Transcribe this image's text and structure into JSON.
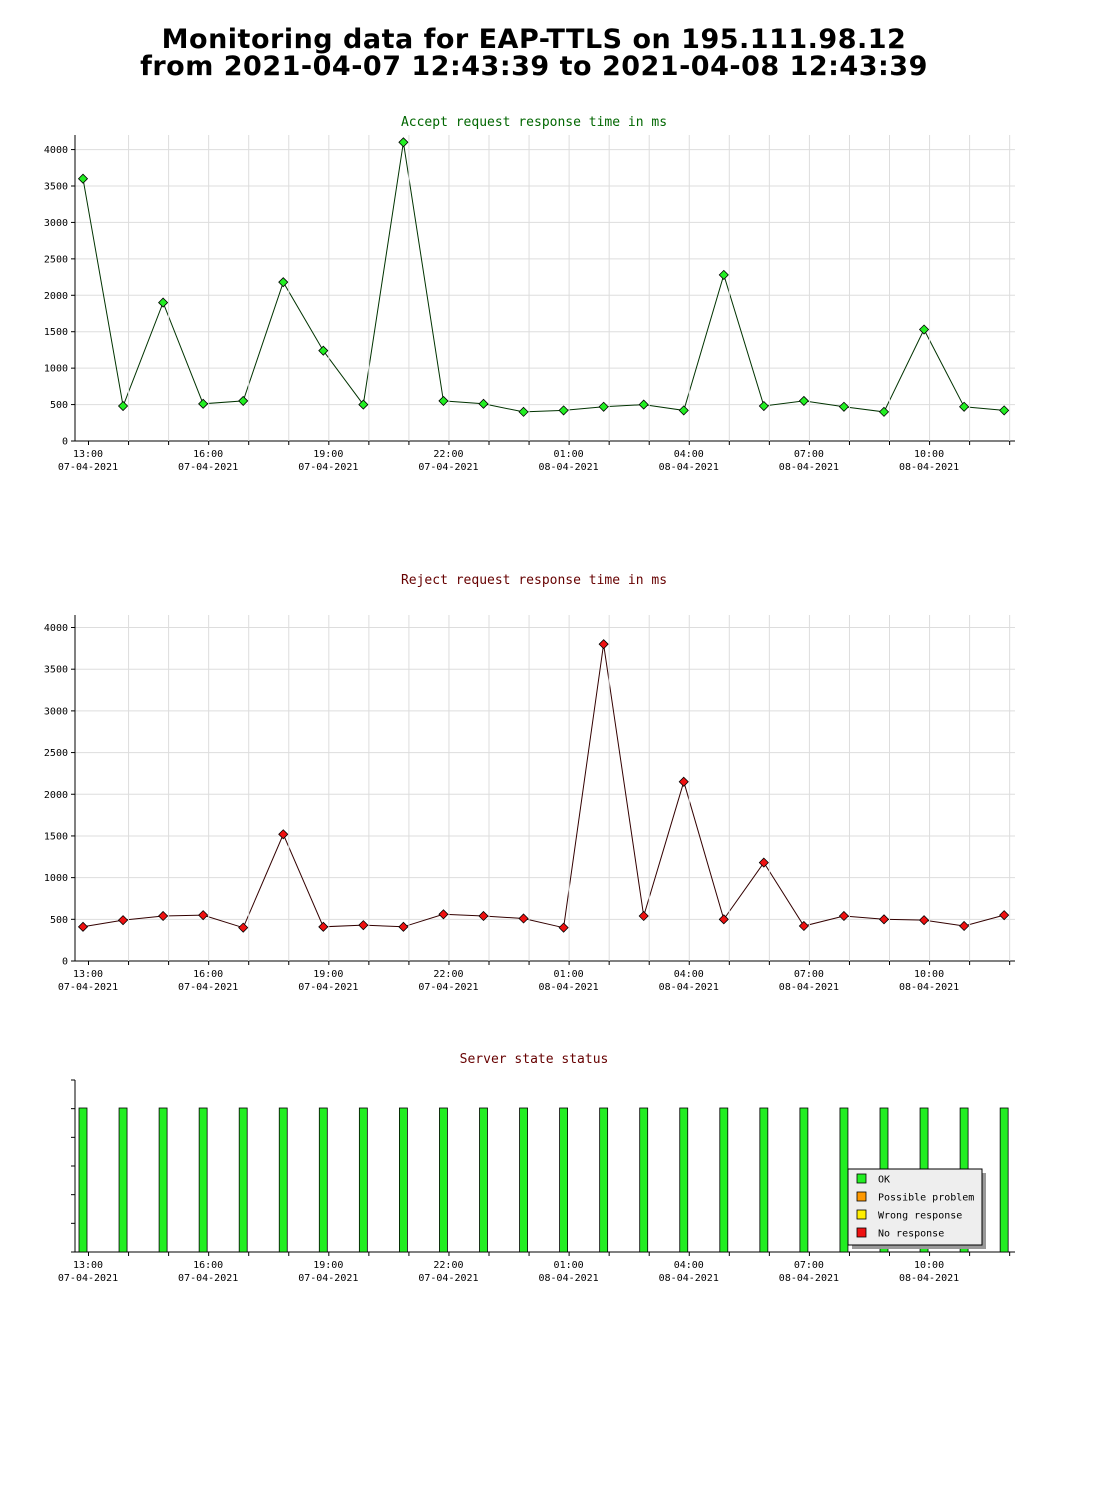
{
  "page": {
    "title_line1": "Monitoring data for EAP-TTLS on 195.111.98.12",
    "title_line2": "from 2021-04-07 12:43:39 to 2021-04-08 12:43:39"
  },
  "x_ticks": [
    {
      "time": "13:00",
      "date": "07-04-2021",
      "hours": 0
    },
    {
      "time": "16:00",
      "date": "07-04-2021",
      "hours": 3
    },
    {
      "time": "19:00",
      "date": "07-04-2021",
      "hours": 6
    },
    {
      "time": "22:00",
      "date": "07-04-2021",
      "hours": 9
    },
    {
      "time": "01:00",
      "date": "08-04-2021",
      "hours": 12
    },
    {
      "time": "04:00",
      "date": "08-04-2021",
      "hours": 15
    },
    {
      "time": "07:00",
      "date": "08-04-2021",
      "hours": 18
    },
    {
      "time": "10:00",
      "date": "08-04-2021",
      "hours": 21
    }
  ],
  "chart_data": [
    {
      "type": "line",
      "title": "Accept request response time in ms",
      "title_color": "#006600",
      "line_color": "#003300",
      "marker_color": "#22ee22",
      "ylim": [
        0,
        4200
      ],
      "y_ticks": [
        0,
        500,
        1000,
        1500,
        2000,
        2500,
        3000,
        3500,
        4000
      ],
      "grid": true,
      "x_hours": [
        -0.2,
        0.8,
        1.8,
        2.8,
        3.8,
        4.8,
        5.8,
        6.8,
        7.8,
        8.8,
        9.8,
        10.8,
        11.8,
        12.8,
        13.8,
        14.8,
        15.8,
        16.8,
        17.8,
        18.8,
        19.8,
        20.8,
        21.8,
        22.8
      ],
      "values": [
        3600,
        480,
        1900,
        510,
        550,
        2180,
        1240,
        500,
        4100,
        550,
        510,
        400,
        420,
        470,
        500,
        420,
        2280,
        480,
        550,
        470,
        400,
        1530,
        470,
        420
      ]
    },
    {
      "type": "line",
      "title": "Reject request response time in ms",
      "title_color": "#660000",
      "line_color": "#330000",
      "marker_color": "#ee1111",
      "ylim": [
        0,
        4150
      ],
      "y_ticks": [
        0,
        500,
        1000,
        1500,
        2000,
        2500,
        3000,
        3500,
        4000
      ],
      "grid": true,
      "x_hours": [
        -0.2,
        0.8,
        1.8,
        2.8,
        3.8,
        4.8,
        5.8,
        6.8,
        7.8,
        8.8,
        9.8,
        10.8,
        11.8,
        12.8,
        13.8,
        14.8,
        15.8,
        16.8,
        17.8,
        18.8,
        19.8,
        20.8,
        21.8,
        22.8
      ],
      "values": [
        410,
        490,
        540,
        550,
        400,
        1520,
        410,
        430,
        410,
        560,
        540,
        510,
        400,
        3800,
        540,
        2150,
        500,
        1180,
        420,
        540,
        500,
        490,
        420,
        550
      ]
    },
    {
      "type": "bar",
      "title": "Server state status",
      "title_color": "#660000",
      "x_hours": [
        -0.2,
        0.8,
        1.8,
        2.8,
        3.8,
        4.8,
        5.8,
        6.8,
        7.8,
        8.8,
        9.8,
        10.8,
        11.8,
        12.8,
        13.8,
        14.8,
        15.8,
        16.8,
        17.8,
        18.8,
        19.8,
        20.8,
        21.8,
        22.8
      ],
      "states": [
        "OK",
        "OK",
        "OK",
        "OK",
        "OK",
        "OK",
        "OK",
        "OK",
        "OK",
        "OK",
        "OK",
        "OK",
        "OK",
        "OK",
        "OK",
        "OK",
        "OK",
        "OK",
        "OK",
        "OK",
        "OK",
        "OK",
        "OK",
        "OK"
      ],
      "level": 1,
      "legend": [
        {
          "label": "OK",
          "color": "#22ee22"
        },
        {
          "label": "Possible problem",
          "color": "#ff9900"
        },
        {
          "label": "Wrong response",
          "color": "#ffee00"
        },
        {
          "label": "No response",
          "color": "#ee1111"
        }
      ]
    }
  ]
}
